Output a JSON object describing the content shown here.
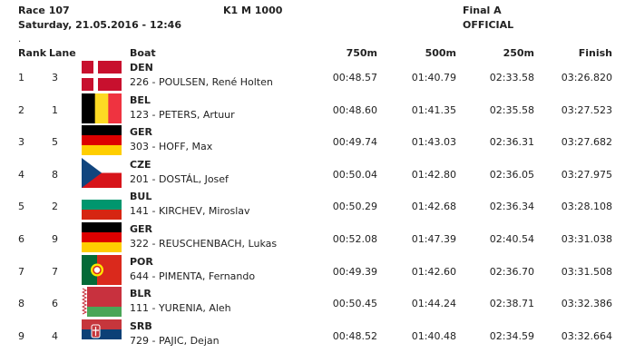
{
  "header": {
    "race": "Race 107",
    "datetime": "Saturday, 21.05.2016 - 12:46",
    "event": "K1 M 1000",
    "final": "Final A",
    "status": "OFFICIAL",
    "dot": "."
  },
  "columns": {
    "rank": "Rank",
    "lane": "Lane",
    "boat": "Boat",
    "c750": "750m",
    "c500": "500m",
    "c250": "250m",
    "finish": "Finish"
  },
  "rows": [
    {
      "rank": "1",
      "lane": "3",
      "nat": "DEN",
      "flag": "denmark-flag",
      "name": "226 - POULSEN, René Holten",
      "t750": "00:48.57",
      "t500": "01:40.79",
      "t250": "02:33.58",
      "finish": "03:26.820"
    },
    {
      "rank": "2",
      "lane": "1",
      "nat": "BEL",
      "flag": "belgium-flag",
      "name": "123 - PETERS, Artuur",
      "t750": "00:48.60",
      "t500": "01:41.35",
      "t250": "02:35.58",
      "finish": "03:27.523"
    },
    {
      "rank": "3",
      "lane": "5",
      "nat": "GER",
      "flag": "germany-flag",
      "name": "303 - HOFF, Max",
      "t750": "00:49.74",
      "t500": "01:43.03",
      "t250": "02:36.31",
      "finish": "03:27.682"
    },
    {
      "rank": "4",
      "lane": "8",
      "nat": "CZE",
      "flag": "czech-flag",
      "name": "201 - DOSTÁL, Josef",
      "t750": "00:50.04",
      "t500": "01:42.80",
      "t250": "02:36.05",
      "finish": "03:27.975"
    },
    {
      "rank": "5",
      "lane": "2",
      "nat": "BUL",
      "flag": "bulgaria-flag",
      "name": "141 - KIRCHEV, Miroslav",
      "t750": "00:50.29",
      "t500": "01:42.68",
      "t250": "02:36.34",
      "finish": "03:28.108"
    },
    {
      "rank": "6",
      "lane": "9",
      "nat": "GER",
      "flag": "germany-flag",
      "name": "322 - REUSCHENBACH, Lukas",
      "t750": "00:52.08",
      "t500": "01:47.39",
      "t250": "02:40.54",
      "finish": "03:31.038"
    },
    {
      "rank": "7",
      "lane": "7",
      "nat": "POR",
      "flag": "portugal-flag",
      "name": "644 - PIMENTA, Fernando",
      "t750": "00:49.39",
      "t500": "01:42.60",
      "t250": "02:36.70",
      "finish": "03:31.508"
    },
    {
      "rank": "8",
      "lane": "6",
      "nat": "BLR",
      "flag": "belarus-flag",
      "name": "111 - YURENIA, Aleh",
      "t750": "00:50.45",
      "t500": "01:44.24",
      "t250": "02:38.71",
      "finish": "03:32.386"
    },
    {
      "rank": "9",
      "lane": "4",
      "nat": "SRB",
      "flag": "serbia-flag",
      "name": "729 - PAJIC, Dejan",
      "t750": "00:48.52",
      "t500": "01:40.48",
      "t250": "02:34.59",
      "finish": "03:32.664"
    }
  ],
  "colors": {
    "denmark_red": "#c8102e",
    "belgium_black": "#000000",
    "belgium_yellow": "#fdda24",
    "belgium_red": "#ef3340",
    "germany_black": "#000000",
    "germany_red": "#dd0000",
    "germany_gold": "#ffce00",
    "czech_blue": "#11457e",
    "czech_red": "#d7141a",
    "bulgaria_green": "#00966e",
    "bulgaria_red": "#d62612",
    "portugal_green": "#046a38",
    "portugal_red": "#da291c",
    "portugal_yellow": "#ffe900",
    "belarus_red": "#c8313e",
    "belarus_green": "#4aa657",
    "serbia_red": "#c6363c",
    "serbia_blue": "#0c4076"
  }
}
